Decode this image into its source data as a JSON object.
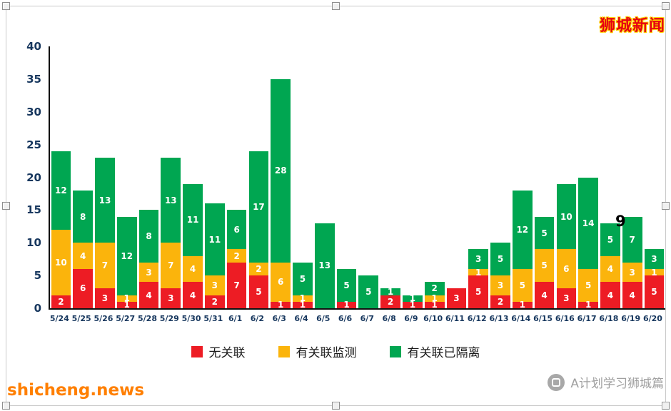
{
  "brand": {
    "site_name": "狮城新闻",
    "site_url": "shicheng.news",
    "account_name": "A计划学习狮城篇"
  },
  "chart_data": {
    "type": "bar",
    "stacked": true,
    "title": "",
    "xlabel": "",
    "ylabel": "",
    "ylim": [
      0,
      40
    ],
    "yticks": [
      0,
      5,
      10,
      15,
      20,
      25,
      30,
      35,
      40
    ],
    "grid": false,
    "legend_position": "bottom",
    "annotation": "9",
    "categories": [
      "5/24",
      "5/25",
      "5/26",
      "5/27",
      "5/28",
      "5/29",
      "5/30",
      "5/31",
      "6/1",
      "6/2",
      "6/3",
      "6/4",
      "6/5",
      "6/6",
      "6/7",
      "6/8",
      "6/9",
      "6/10",
      "6/11",
      "6/12",
      "6/13",
      "6/14",
      "6/15",
      "6/16",
      "6/17",
      "6/18",
      "6/19",
      "6/20"
    ],
    "series": [
      {
        "name": "无关联",
        "color": "#ed1c24",
        "values": [
          2,
          6,
          3,
          1,
          4,
          3,
          4,
          2,
          7,
          5,
          1,
          1,
          0,
          1,
          0,
          2,
          1,
          1,
          3,
          5,
          2,
          1,
          4,
          3,
          1,
          4,
          4,
          5
        ]
      },
      {
        "name": "有关联监测",
        "color": "#fbb40c",
        "values": [
          10,
          4,
          7,
          1,
          3,
          7,
          4,
          3,
          2,
          2,
          6,
          1,
          0,
          0,
          0,
          0,
          0,
          1,
          0,
          1,
          3,
          5,
          5,
          6,
          5,
          4,
          3,
          1
        ]
      },
      {
        "name": "有关联已隔离",
        "color": "#00a651",
        "values": [
          12,
          8,
          13,
          12,
          8,
          13,
          11,
          11,
          6,
          17,
          28,
          5,
          13,
          5,
          5,
          1,
          1,
          2,
          0,
          3,
          5,
          12,
          5,
          10,
          14,
          5,
          7,
          3
        ]
      }
    ]
  }
}
